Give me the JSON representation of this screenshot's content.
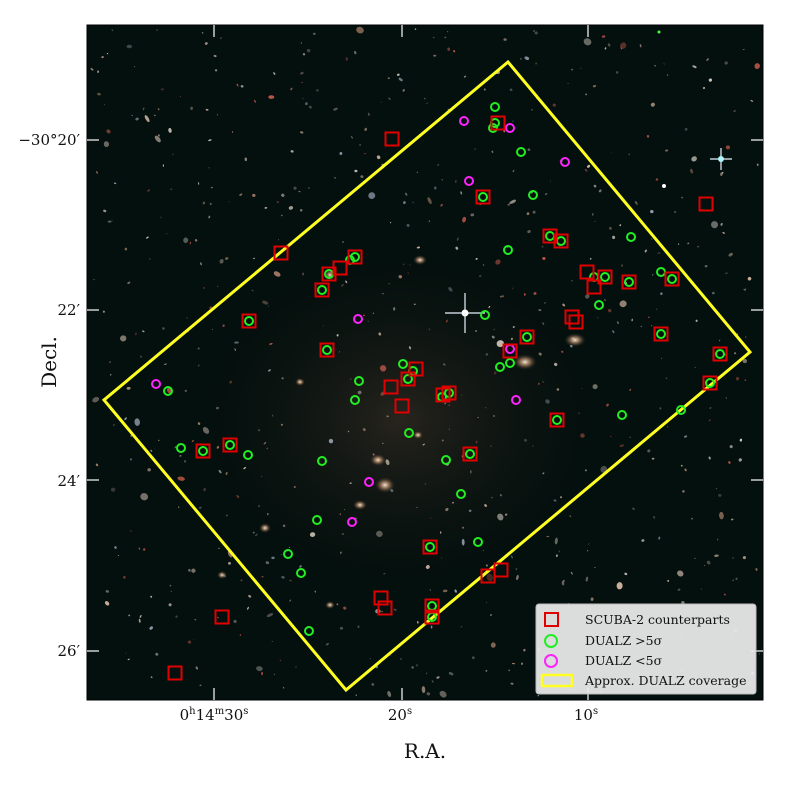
{
  "figure": {
    "xlabel": "R.A.",
    "ylabel": "Decl.",
    "x_ticks": [
      "0h14m30s",
      "20s",
      "10s"
    ],
    "y_ticks": [
      "−30°20′",
      "22′",
      "24′",
      "26′"
    ],
    "colors": {
      "scuba": "#e00000",
      "dualz_high": "#22ee22",
      "dualz_low": "#ff22ff",
      "coverage": "#ffff22",
      "sky_background": "#03100e"
    }
  },
  "legend": {
    "scuba_label": "SCUBA-2 counterparts",
    "high_label": "DUALZ >5σ",
    "low_label": "DUALZ <5σ",
    "coverage_label": "Approx. DUALZ coverage"
  },
  "markers": {
    "scuba_count": 48,
    "dualz_high_count": 58,
    "dualz_low_count": 11
  }
}
